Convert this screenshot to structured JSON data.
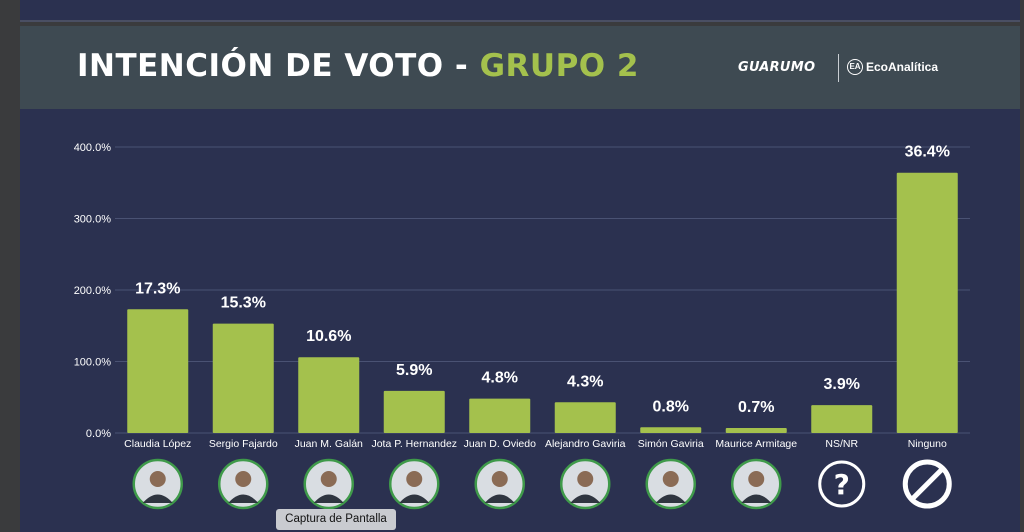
{
  "header": {
    "title_main": "INTENCIÓN DE VOTO - ",
    "title_accent": "GRUPO 2",
    "logo_guarumo": "GUARUMO",
    "logo_eco": "EcoAnalítica"
  },
  "tooltip": "Captura de Pantalla",
  "colors": {
    "bar": "#a4c14d",
    "background": "#2b3150",
    "header": "#3e4a52",
    "accent": "#a4c14d"
  },
  "chart_data": {
    "type": "bar",
    "categories": [
      "Claudia López",
      "Sergio Fajardo",
      "Juan M. Galán",
      "Jota P. Hernandez",
      "Juan D. Oviedo",
      "Alejandro Gaviria",
      "Simón Gaviria",
      "Maurice Armitage",
      "NS/NR",
      "Ninguno"
    ],
    "values": [
      173,
      153,
      106,
      59,
      48,
      43,
      8,
      7,
      39,
      364
    ],
    "data_labels": [
      "17.3%",
      "15.3%",
      "10.6%",
      "5.9%",
      "4.8%",
      "4.3%",
      "0.8%",
      "0.7%",
      "3.9%",
      "36.4%"
    ],
    "yticks": [
      0,
      100,
      200,
      300,
      400
    ],
    "ytick_labels": [
      "0.0%",
      "100.0%",
      "200.0%",
      "300.0%",
      "400.0%"
    ],
    "ylim": [
      0,
      400
    ],
    "grid": true,
    "icons": [
      "candidate-photo-icon",
      "candidate-photo-icon",
      "candidate-photo-icon",
      "candidate-photo-icon",
      "candidate-photo-icon",
      "candidate-photo-icon",
      "candidate-photo-icon",
      "candidate-photo-icon",
      "question-mark-icon",
      "no-symbol-icon"
    ]
  }
}
